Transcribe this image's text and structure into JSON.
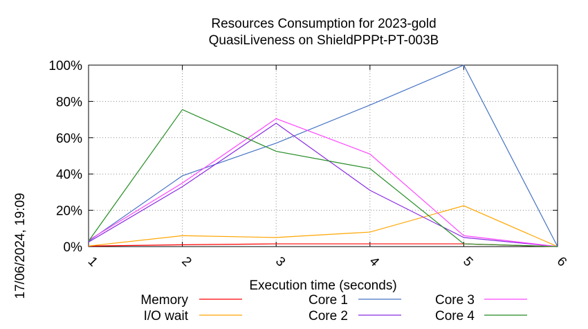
{
  "side_label": "17/06/2024, 19:09",
  "chart_data": {
    "type": "line",
    "title": "Resources Consumption for 2023-gold",
    "subtitle": "QuasiLiveness on ShieldPPPt-PT-003B",
    "xlabel": "Execution time (seconds)",
    "ylabel": "",
    "x": [
      1,
      2,
      3,
      4,
      5,
      6
    ],
    "x_tick_labels": [
      "1",
      "2",
      "3",
      "4",
      "5",
      "6"
    ],
    "xlim": [
      1,
      6
    ],
    "ylim": [
      0,
      100
    ],
    "y_ticks": [
      0,
      20,
      40,
      60,
      80,
      100
    ],
    "y_tick_labels": [
      "0%",
      "20%",
      "40%",
      "60%",
      "80%",
      "100%"
    ],
    "grid": true,
    "legend_position": "bottom",
    "series": [
      {
        "name": "Memory",
        "color": "#ff0000",
        "values": [
          0.3,
          1,
          1.5,
          1.5,
          1.5,
          0
        ]
      },
      {
        "name": "I/O wait",
        "color": "#ffa500",
        "values": [
          0.3,
          6,
          5,
          8,
          22.5,
          0
        ]
      },
      {
        "name": "Core 1",
        "color": "#4472c4",
        "values": [
          3,
          39,
          57,
          78,
          100,
          0
        ]
      },
      {
        "name": "Core 2",
        "color": "#8a2be2",
        "values": [
          2.5,
          33,
          68,
          31,
          5,
          0
        ]
      },
      {
        "name": "Core 3",
        "color": "#ff44ff",
        "values": [
          3.5,
          35,
          70.5,
          51,
          6,
          0
        ]
      },
      {
        "name": "Core 4",
        "color": "#228b22",
        "values": [
          3,
          75.5,
          52.5,
          43,
          1.5,
          0
        ]
      }
    ]
  }
}
